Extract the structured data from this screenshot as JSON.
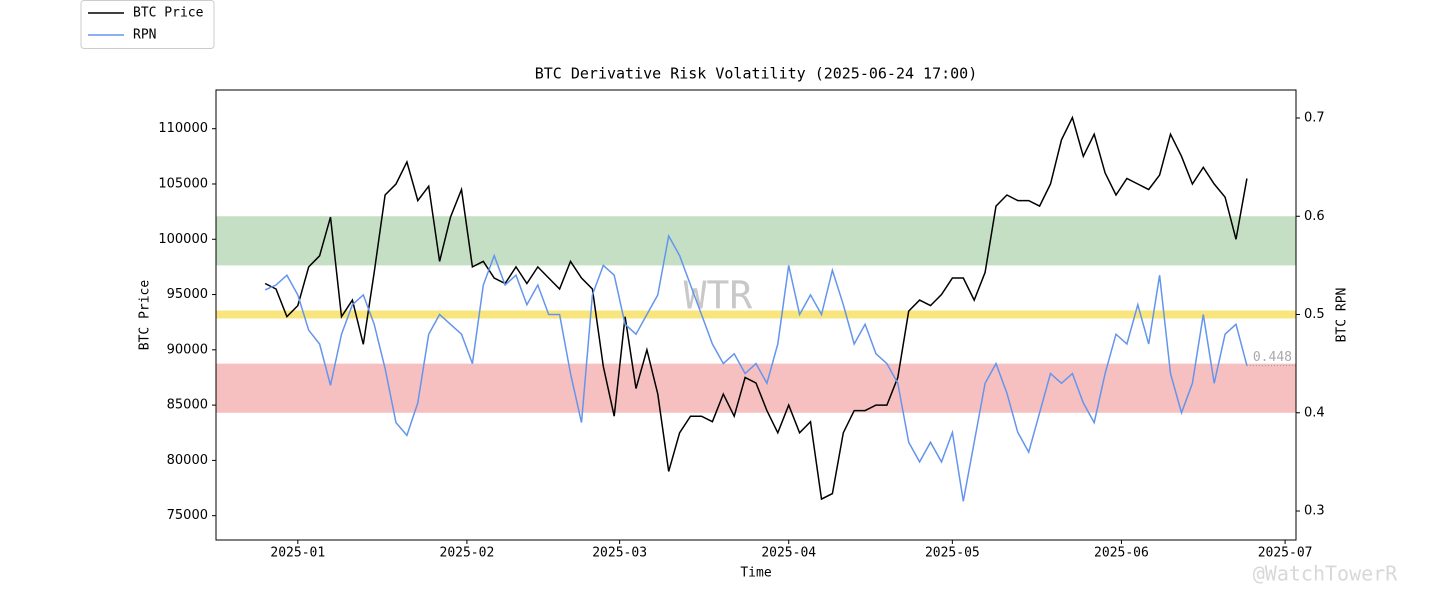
{
  "chart_data": {
    "type": "line",
    "title": "BTC Derivative Risk Volatility (2025-06-24 17:00)",
    "xlabel": "Time",
    "ylabel": "BTC Price",
    "y2label": "BTC RPN",
    "watermark": "WTR",
    "credit": "@WatchTowerR",
    "x": [
      "2024-12-26",
      "2024-12-28",
      "2024-12-30",
      "2025-01-01",
      "2025-01-03",
      "2025-01-05",
      "2025-01-07",
      "2025-01-09",
      "2025-01-11",
      "2025-01-13",
      "2025-01-15",
      "2025-01-17",
      "2025-01-19",
      "2025-01-21",
      "2025-01-23",
      "2025-01-25",
      "2025-01-27",
      "2025-01-29",
      "2025-01-31",
      "2025-02-02",
      "2025-02-04",
      "2025-02-06",
      "2025-02-08",
      "2025-02-10",
      "2025-02-12",
      "2025-02-14",
      "2025-02-16",
      "2025-02-18",
      "2025-02-20",
      "2025-02-22",
      "2025-02-24",
      "2025-02-26",
      "2025-02-28",
      "2025-03-02",
      "2025-03-04",
      "2025-03-06",
      "2025-03-08",
      "2025-03-10",
      "2025-03-12",
      "2025-03-14",
      "2025-03-16",
      "2025-03-18",
      "2025-03-20",
      "2025-03-22",
      "2025-03-24",
      "2025-03-26",
      "2025-03-28",
      "2025-03-30",
      "2025-04-01",
      "2025-04-03",
      "2025-04-05",
      "2025-04-07",
      "2025-04-09",
      "2025-04-11",
      "2025-04-13",
      "2025-04-15",
      "2025-04-17",
      "2025-04-19",
      "2025-04-21",
      "2025-04-23",
      "2025-04-25",
      "2025-04-27",
      "2025-04-29",
      "2025-05-01",
      "2025-05-03",
      "2025-05-05",
      "2025-05-07",
      "2025-05-09",
      "2025-05-11",
      "2025-05-13",
      "2025-05-15",
      "2025-05-17",
      "2025-05-19",
      "2025-05-21",
      "2025-05-23",
      "2025-05-25",
      "2025-05-27",
      "2025-05-29",
      "2025-05-31",
      "2025-06-02",
      "2025-06-04",
      "2025-06-06",
      "2025-06-08",
      "2025-06-10",
      "2025-06-12",
      "2025-06-14",
      "2025-06-16",
      "2025-06-18",
      "2025-06-20",
      "2025-06-22",
      "2025-06-24"
    ],
    "series": [
      {
        "name": "BTC Price",
        "color": "#000000",
        "axis": "y",
        "values": [
          96000,
          95500,
          93000,
          94000,
          97500,
          98500,
          102000,
          93000,
          94500,
          90500,
          97000,
          104000,
          105000,
          107000,
          103500,
          104800,
          98000,
          102000,
          104500,
          97500,
          98000,
          96500,
          96000,
          97500,
          96000,
          97500,
          96500,
          95500,
          98000,
          96500,
          95500,
          88500,
          84000,
          93000,
          86500,
          90000,
          86000,
          79000,
          82500,
          84000,
          84000,
          83500,
          86000,
          84000,
          87500,
          87000,
          84500,
          82500,
          85000,
          82500,
          83500,
          76500,
          77000,
          82500,
          84500,
          84500,
          85000,
          85000,
          87500,
          93500,
          94500,
          94000,
          95000,
          96500,
          96500,
          94500,
          97000,
          103000,
          104000,
          103500,
          103500,
          103000,
          105000,
          109000,
          111000,
          107500,
          109500,
          106000,
          104000,
          105500,
          105000,
          104500,
          105800,
          109500,
          107500,
          105000,
          106500,
          105000,
          103800,
          100000,
          105500
        ]
      },
      {
        "name": "RPN",
        "color": "#6495ed",
        "axis": "y2",
        "end_label": true,
        "values": [
          0.525,
          0.53,
          0.54,
          0.52,
          0.484,
          0.47,
          0.428,
          0.48,
          0.51,
          0.52,
          0.49,
          0.445,
          0.39,
          0.377,
          0.41,
          0.48,
          0.5,
          0.49,
          0.48,
          0.45,
          0.53,
          0.56,
          0.53,
          0.54,
          0.51,
          0.53,
          0.5,
          0.5,
          0.44,
          0.39,
          0.52,
          0.55,
          0.54,
          0.49,
          0.48,
          0.5,
          0.52,
          0.58,
          0.56,
          0.53,
          0.5,
          0.47,
          0.45,
          0.46,
          0.44,
          0.45,
          0.43,
          0.47,
          0.55,
          0.5,
          0.52,
          0.5,
          0.545,
          0.51,
          0.47,
          0.49,
          0.46,
          0.45,
          0.43,
          0.37,
          0.35,
          0.37,
          0.35,
          0.38,
          0.31,
          0.37,
          0.43,
          0.45,
          0.42,
          0.38,
          0.36,
          0.4,
          0.44,
          0.43,
          0.44,
          0.41,
          0.39,
          0.44,
          0.48,
          0.47,
          0.51,
          0.47,
          0.54,
          0.44,
          0.4,
          0.43,
          0.5,
          0.43,
          0.48,
          0.49,
          0.448
        ]
      }
    ],
    "bands": [
      {
        "from": 0.55,
        "to": 0.6,
        "color": "#c5dfc5"
      },
      {
        "from": 0.4,
        "to": 0.45,
        "color": "#f6c0c0"
      }
    ],
    "hlines": [
      {
        "value": 0.5,
        "color": "#f9e57e"
      }
    ],
    "xlim": [
      "2024-12-17",
      "2025-07-03"
    ],
    "xticks": [
      {
        "value": "2025-01-01",
        "label": "2025-01"
      },
      {
        "value": "2025-02-01",
        "label": "2025-02"
      },
      {
        "value": "2025-03-01",
        "label": "2025-03"
      },
      {
        "value": "2025-04-01",
        "label": "2025-04"
      },
      {
        "value": "2025-05-01",
        "label": "2025-05"
      },
      {
        "value": "2025-06-01",
        "label": "2025-06"
      },
      {
        "value": "2025-07-01",
        "label": "2025-07"
      }
    ],
    "ylim": [
      72800,
      113500
    ],
    "yticks": [
      75000,
      80000,
      85000,
      90000,
      95000,
      100000,
      105000,
      110000
    ],
    "y2lim": [
      0.2705,
      0.7285
    ],
    "y2ticks": [
      0.3,
      0.4,
      0.5,
      0.6,
      0.7
    ],
    "legend": "upper left",
    "grid": false
  }
}
